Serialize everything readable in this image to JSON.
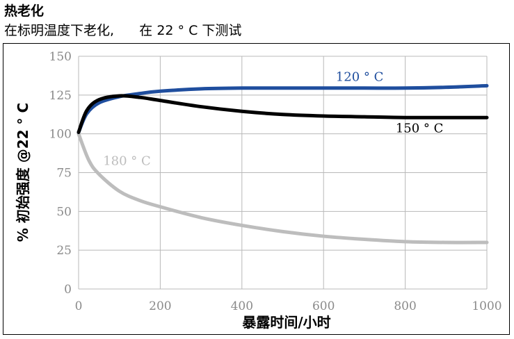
{
  "header": {
    "title": "热老化",
    "subtitle": "在标明温度下老化,      在 22 ° C 下测试"
  },
  "chart_data": {
    "type": "line",
    "xlabel": "暴露时间/小时",
    "ylabel": "% 初始强度  @22 ° C",
    "xlim": [
      0,
      1000
    ],
    "ylim": [
      0,
      150
    ],
    "x_ticks": [
      "0",
      "200",
      "400",
      "600",
      "800",
      "1000"
    ],
    "y_ticks": [
      "0",
      "25",
      "50",
      "75",
      "100",
      "125",
      "150"
    ],
    "grid": true,
    "series": [
      {
        "name": "120 ° C",
        "color": "#1f4e9e",
        "x": [
          0,
          20,
          50,
          100,
          150,
          200,
          300,
          400,
          500,
          600,
          700,
          800,
          900,
          1000
        ],
        "y": [
          101,
          113,
          120,
          124,
          126,
          127.5,
          129,
          129.5,
          129.5,
          129.5,
          129.5,
          129.5,
          130,
          131
        ]
      },
      {
        "name": "150 ° C",
        "color": "#000000",
        "x": [
          0,
          20,
          50,
          100,
          150,
          200,
          300,
          400,
          500,
          600,
          700,
          800,
          900,
          1000
        ],
        "y": [
          101,
          115,
          122,
          124.5,
          123.5,
          121.5,
          117.5,
          114.5,
          112.5,
          111.5,
          111,
          110.5,
          110.5,
          110.5
        ]
      },
      {
        "name": "180 ° C",
        "color": "#bdbdbd",
        "x": [
          0,
          25,
          50,
          100,
          150,
          200,
          300,
          400,
          500,
          600,
          700,
          800,
          900,
          1000
        ],
        "y": [
          100,
          83,
          74,
          63,
          57,
          53,
          46,
          41,
          37,
          34,
          32,
          30.5,
          30,
          30
        ]
      }
    ]
  }
}
